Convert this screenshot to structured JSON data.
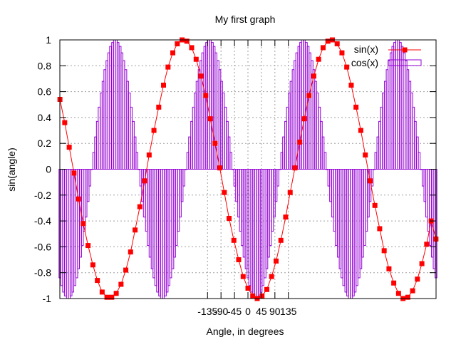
{
  "chart_data": {
    "type": "line",
    "title": "My first graph",
    "xlabel": "Angle, in degrees",
    "ylabel": "sin(angle)",
    "xlim": [
      -628.3,
      628.3
    ],
    "ylim": [
      -1,
      1
    ],
    "grid": true,
    "legend_position": "top-right",
    "x_ticks": [
      -135,
      -90,
      -45,
      0,
      45,
      90,
      135
    ],
    "y_ticks": [
      -1,
      -0.8,
      -0.6,
      -0.4,
      -0.2,
      0,
      0.2,
      0.4,
      0.6,
      0.8,
      1
    ],
    "y_tick_labels": [
      "-1",
      "-0.8",
      "-0.6",
      "-0.4",
      "-0.2",
      "0",
      "0.2",
      "0.4",
      "0.6",
      "0.8",
      "1"
    ],
    "series": [
      {
        "name": "sin(x)",
        "style": "linespoints",
        "color": "#ff0000",
        "marker": "square",
        "x": [
          -628,
          -612,
          -597,
          -581,
          -566,
          -550,
          -534,
          -518,
          -503,
          -487,
          -471,
          -455,
          -440,
          -424,
          -408,
          -392,
          -377,
          -361,
          -345,
          -330,
          -314,
          -298,
          -282,
          -267,
          -251,
          -236,
          -220,
          -204,
          -188,
          -173,
          -157,
          -141,
          -126,
          -110,
          -94,
          -79,
          -63,
          -47,
          -31,
          -16,
          0,
          16,
          31,
          47,
          63,
          79,
          94,
          110,
          126,
          141,
          157,
          173,
          188,
          204,
          220,
          236,
          251,
          267,
          282,
          298,
          314,
          330,
          345,
          361,
          377,
          392,
          408,
          424,
          440,
          455,
          471,
          487,
          503,
          518,
          534,
          550,
          566,
          581,
          597,
          612,
          628
        ],
        "y": [
          0.54,
          0.36,
          0.17,
          -0.03,
          -0.23,
          -0.42,
          -0.59,
          -0.74,
          -0.86,
          -0.95,
          -0.99,
          -0.99,
          -0.96,
          -0.89,
          -0.78,
          -0.64,
          -0.47,
          -0.29,
          -0.09,
          0.11,
          0.3,
          0.48,
          0.65,
          0.79,
          0.9,
          0.97,
          1.0,
          0.99,
          0.94,
          0.85,
          0.72,
          0.57,
          0.39,
          0.2,
          0.01,
          -0.18,
          -0.38,
          -0.55,
          -0.7,
          -0.83,
          -0.92,
          -0.98,
          -1.0,
          -0.98,
          -0.93,
          -0.83,
          -0.71,
          -0.55,
          -0.37,
          -0.18,
          0.01,
          0.21,
          0.39,
          0.57,
          0.72,
          0.85,
          0.94,
          0.99,
          1.0,
          0.97,
          0.9,
          0.79,
          0.65,
          0.48,
          0.3,
          0.11,
          -0.09,
          -0.28,
          -0.46,
          -0.63,
          -0.77,
          -0.88,
          -0.96,
          -1.0,
          -0.99,
          -0.94,
          -0.85,
          -0.73,
          -0.58,
          -0.4,
          -0.54
        ]
      },
      {
        "name": "cos(x)",
        "style": "impulses",
        "color": "#9400d3",
        "x": [
          -628,
          -622,
          -616,
          -610,
          -603,
          -597,
          -591,
          -585,
          -578,
          -572,
          -566,
          -559,
          -553,
          -547,
          -541,
          -534,
          -528,
          -522,
          -515,
          -509,
          -503,
          -497,
          -490,
          -484,
          -478,
          -471,
          -465,
          -459,
          -452,
          -446,
          -440,
          -434,
          -427,
          -421,
          -415,
          -408,
          -402,
          -396,
          -390,
          -383,
          -377,
          -371,
          -364,
          -358,
          -352,
          -346,
          -339,
          -333,
          -327,
          -320,
          -314,
          -308,
          -302,
          -295,
          -289,
          -283,
          -276,
          -270,
          -264,
          -258,
          -251,
          -245,
          -239,
          -232,
          -226,
          -220,
          -214,
          -207,
          -201,
          -195,
          -188,
          -182,
          -176,
          -170,
          -163,
          -157,
          -151,
          -144,
          -138,
          -132,
          -126,
          -119,
          -113,
          -107,
          -100,
          -94,
          -88,
          -82,
          -75,
          -69,
          -63,
          -57,
          -50,
          -44,
          -38,
          -31,
          -25,
          -19,
          -13,
          -6,
          0,
          6,
          13,
          19,
          25,
          31,
          38,
          44,
          50,
          57,
          63,
          69,
          75,
          82,
          88,
          94,
          100,
          107,
          113,
          119,
          126,
          132,
          138,
          144,
          151,
          157,
          163,
          170,
          176,
          182,
          188,
          195,
          201,
          207,
          214,
          220,
          226,
          232,
          239,
          245,
          251,
          258,
          264,
          270,
          276,
          283,
          289,
          295,
          302,
          308,
          314,
          320,
          327,
          333,
          339,
          346,
          352,
          358,
          364,
          371,
          377,
          383,
          390,
          396,
          402,
          408,
          415,
          421,
          427,
          434,
          440,
          446,
          452,
          459,
          465,
          471,
          478,
          484,
          490,
          497,
          503,
          509,
          515,
          522,
          528,
          534,
          541,
          547,
          553,
          559,
          566,
          572,
          578,
          585,
          591,
          597,
          603,
          610,
          616,
          622,
          628
        ],
        "y": [
          -0.84,
          -0.9,
          -0.95,
          -0.98,
          -1.0,
          -1.0,
          -0.98,
          -0.95,
          -0.9,
          -0.84,
          -0.77,
          -0.68,
          -0.59,
          -0.48,
          -0.37,
          -0.25,
          -0.13,
          -0.0,
          0.13,
          0.25,
          0.37,
          0.48,
          0.59,
          0.68,
          0.77,
          0.84,
          0.9,
          0.95,
          0.98,
          1.0,
          1.0,
          0.98,
          0.95,
          0.9,
          0.84,
          0.77,
          0.68,
          0.59,
          0.48,
          0.37,
          0.25,
          0.13,
          0.0,
          -0.13,
          -0.25,
          -0.37,
          -0.48,
          -0.59,
          -0.68,
          -0.77,
          -0.84,
          -0.9,
          -0.95,
          -0.98,
          -1.0,
          -1.0,
          -0.98,
          -0.95,
          -0.9,
          -0.84,
          -0.77,
          -0.68,
          -0.59,
          -0.48,
          -0.37,
          -0.25,
          -0.13,
          -0.0,
          0.13,
          0.25,
          0.37,
          0.48,
          0.59,
          0.68,
          0.77,
          0.84,
          0.9,
          0.95,
          0.98,
          1.0,
          1.0,
          0.98,
          0.95,
          0.9,
          0.84,
          0.77,
          0.68,
          0.59,
          0.48,
          0.37,
          0.25,
          0.13,
          0.0,
          -0.13,
          -0.25,
          -0.37,
          -0.48,
          -0.59,
          -0.68,
          -0.77,
          -0.84,
          -0.9,
          -0.95,
          -0.98,
          -1.0,
          -1.0,
          -0.98,
          -0.95,
          -0.9,
          -0.84,
          -0.77,
          -0.68,
          -0.59,
          -0.48,
          -0.37,
          -0.25,
          -0.13,
          -0.0,
          0.13,
          0.25,
          0.37,
          0.48,
          0.59,
          0.68,
          0.77,
          0.84,
          0.9,
          0.95,
          0.98,
          1.0,
          1.0,
          0.98,
          0.95,
          0.9,
          0.84,
          0.77,
          0.68,
          0.59,
          0.48,
          0.37,
          0.25,
          0.13,
          0.0,
          -0.13,
          -0.25,
          -0.37,
          -0.48,
          -0.59,
          -0.68,
          -0.77,
          -0.84,
          -0.9,
          -0.95,
          -0.98,
          -1.0,
          -1.0,
          -0.98,
          -0.95,
          -0.9,
          -0.84,
          -0.77,
          -0.68,
          -0.59,
          -0.48,
          -0.37,
          -0.25,
          -0.13,
          -0.0,
          0.13,
          0.25,
          0.37,
          0.48,
          0.59,
          0.68,
          0.77,
          0.84,
          0.9,
          0.95,
          0.98,
          1.0,
          1.0,
          0.98,
          0.95,
          0.9,
          0.84,
          0.77,
          0.68,
          0.59,
          0.48,
          0.37,
          0.25,
          0.13,
          0.0,
          -0.13,
          -0.25,
          -0.37,
          -0.48,
          -0.59,
          -0.68,
          -0.77,
          -0.84
        ]
      }
    ]
  }
}
